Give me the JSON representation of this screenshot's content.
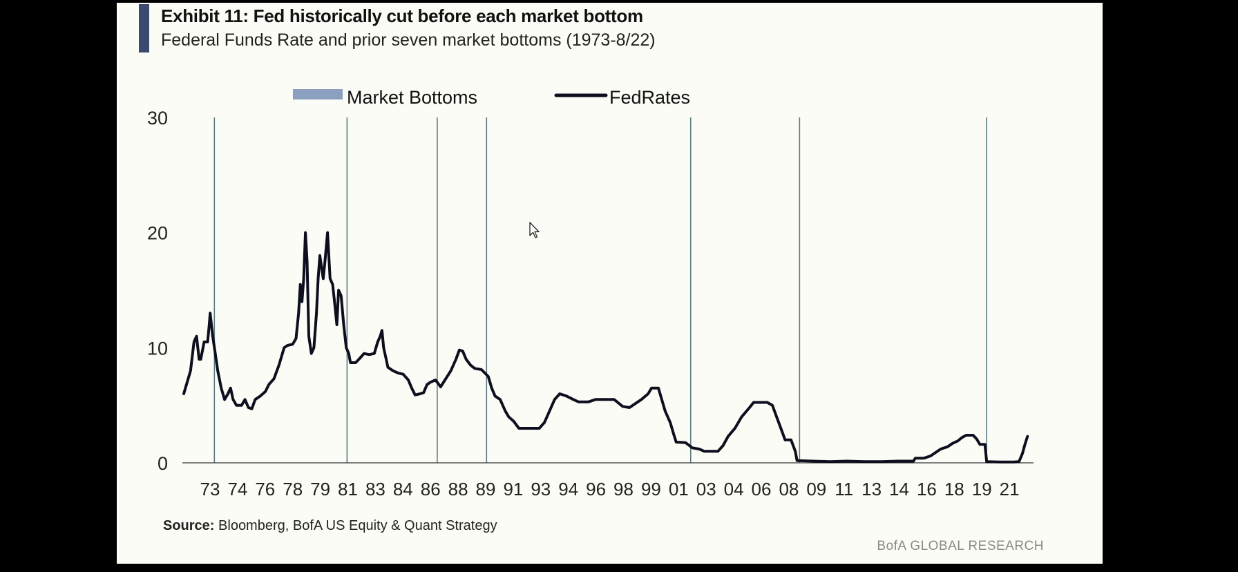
{
  "header": {
    "title": "Exhibit 11: Fed historically cut before each market bottom",
    "subtitle": "Federal Funds Rate and prior seven market bottoms (1973-8/22)"
  },
  "footer": {
    "source_label": "Source:",
    "source_text": "Bloomberg, BofA US Equity & Quant Strategy",
    "brand": "BofA GLOBAL RESEARCH"
  },
  "colors": {
    "line": "#0d0f1e",
    "bottoms": "#5b7b82",
    "legend_bottoms": "#8aa0be",
    "title_bar": "#3c4a70"
  },
  "chart_data": {
    "type": "line",
    "title": "Exhibit 11: Fed historically cut before each market bottom",
    "subtitle": "Federal Funds Rate and prior seven market bottoms (1973-8/22)",
    "xlabel": "",
    "ylabel": "",
    "ylim": [
      0,
      30
    ],
    "yticks": [
      "0",
      "10",
      "20",
      "30"
    ],
    "xticks": [
      "73",
      "74",
      "76",
      "78",
      "79",
      "81",
      "83",
      "84",
      "86",
      "88",
      "89",
      "91",
      "93",
      "94",
      "96",
      "98",
      "99",
      "01",
      "03",
      "04",
      "06",
      "08",
      "09",
      "11",
      "13",
      "14",
      "16",
      "18",
      "19",
      "21"
    ],
    "legend": {
      "position": "top",
      "entries": [
        {
          "name": "Market Bottoms",
          "kind": "bar"
        },
        {
          "name": "FedRates",
          "kind": "line"
        }
      ]
    },
    "market_bottoms": [
      1974.8,
      1982.6,
      1987.9,
      1990.8,
      2002.8,
      2009.2,
      2020.2
    ],
    "series": [
      {
        "name": "FedRates",
        "points": [
          [
            1973.0,
            6.0
          ],
          [
            1973.2,
            7.0
          ],
          [
            1973.4,
            8.0
          ],
          [
            1973.6,
            10.5
          ],
          [
            1973.75,
            11.0
          ],
          [
            1973.9,
            9.0
          ],
          [
            1974.0,
            9.0
          ],
          [
            1974.2,
            10.5
          ],
          [
            1974.4,
            10.5
          ],
          [
            1974.5,
            12.0
          ],
          [
            1974.55,
            13.0
          ],
          [
            1974.7,
            11.0
          ],
          [
            1974.85,
            9.5
          ],
          [
            1975.0,
            8.0
          ],
          [
            1975.2,
            6.5
          ],
          [
            1975.4,
            5.5
          ],
          [
            1975.6,
            6.0
          ],
          [
            1975.75,
            6.5
          ],
          [
            1975.9,
            5.5
          ],
          [
            1976.1,
            5.0
          ],
          [
            1976.4,
            5.0
          ],
          [
            1976.6,
            5.5
          ],
          [
            1976.8,
            4.8
          ],
          [
            1977.0,
            4.7
          ],
          [
            1977.2,
            5.5
          ],
          [
            1977.5,
            5.8
          ],
          [
            1977.8,
            6.2
          ],
          [
            1978.0,
            6.8
          ],
          [
            1978.3,
            7.3
          ],
          [
            1978.6,
            8.5
          ],
          [
            1978.9,
            10.0
          ],
          [
            1979.1,
            10.2
          ],
          [
            1979.4,
            10.3
          ],
          [
            1979.6,
            10.8
          ],
          [
            1979.75,
            13.0
          ],
          [
            1979.85,
            15.5
          ],
          [
            1979.95,
            14.0
          ],
          [
            1980.05,
            16.0
          ],
          [
            1980.15,
            20.0
          ],
          [
            1980.25,
            17.5
          ],
          [
            1980.35,
            11.0
          ],
          [
            1980.5,
            9.5
          ],
          [
            1980.65,
            10.0
          ],
          [
            1980.8,
            13.0
          ],
          [
            1980.9,
            16.0
          ],
          [
            1981.0,
            18.0
          ],
          [
            1981.1,
            17.0
          ],
          [
            1981.2,
            16.0
          ],
          [
            1981.3,
            17.5
          ],
          [
            1981.45,
            20.0
          ],
          [
            1981.6,
            16.0
          ],
          [
            1981.75,
            15.5
          ],
          [
            1981.9,
            13.5
          ],
          [
            1982.0,
            12.0
          ],
          [
            1982.1,
            15.0
          ],
          [
            1982.25,
            14.5
          ],
          [
            1982.4,
            12.0
          ],
          [
            1982.55,
            10.0
          ],
          [
            1982.7,
            9.5
          ],
          [
            1982.8,
            8.7
          ],
          [
            1983.1,
            8.7
          ],
          [
            1983.3,
            9.0
          ],
          [
            1983.6,
            9.5
          ],
          [
            1983.9,
            9.4
          ],
          [
            1984.2,
            9.5
          ],
          [
            1984.4,
            10.5
          ],
          [
            1984.55,
            11.0
          ],
          [
            1984.65,
            11.5
          ],
          [
            1984.75,
            10.0
          ],
          [
            1984.9,
            9.0
          ],
          [
            1985.0,
            8.3
          ],
          [
            1985.3,
            8.0
          ],
          [
            1985.6,
            7.8
          ],
          [
            1985.9,
            7.7
          ],
          [
            1986.2,
            7.2
          ],
          [
            1986.4,
            6.5
          ],
          [
            1986.6,
            5.9
          ],
          [
            1986.9,
            6.0
          ],
          [
            1987.1,
            6.1
          ],
          [
            1987.3,
            6.8
          ],
          [
            1987.5,
            7.0
          ],
          [
            1987.8,
            7.2
          ],
          [
            1988.1,
            6.6
          ],
          [
            1988.4,
            7.3
          ],
          [
            1988.7,
            8.0
          ],
          [
            1989.0,
            9.0
          ],
          [
            1989.2,
            9.8
          ],
          [
            1989.4,
            9.7
          ],
          [
            1989.6,
            9.0
          ],
          [
            1989.85,
            8.5
          ],
          [
            1990.1,
            8.2
          ],
          [
            1990.5,
            8.1
          ],
          [
            1990.9,
            7.5
          ],
          [
            1991.1,
            6.5
          ],
          [
            1991.3,
            5.8
          ],
          [
            1991.6,
            5.5
          ],
          [
            1991.9,
            4.5
          ],
          [
            1992.1,
            4.0
          ],
          [
            1992.4,
            3.6
          ],
          [
            1992.7,
            3.0
          ],
          [
            1993.0,
            3.0
          ],
          [
            1993.5,
            3.0
          ],
          [
            1993.9,
            3.0
          ],
          [
            1994.2,
            3.5
          ],
          [
            1994.5,
            4.5
          ],
          [
            1994.8,
            5.5
          ],
          [
            1995.1,
            6.0
          ],
          [
            1995.5,
            5.8
          ],
          [
            1995.9,
            5.5
          ],
          [
            1996.2,
            5.3
          ],
          [
            1996.8,
            5.3
          ],
          [
            1997.2,
            5.5
          ],
          [
            1997.7,
            5.5
          ],
          [
            1998.3,
            5.5
          ],
          [
            1998.8,
            4.9
          ],
          [
            1999.2,
            4.8
          ],
          [
            1999.6,
            5.2
          ],
          [
            1999.9,
            5.5
          ],
          [
            2000.3,
            6.0
          ],
          [
            2000.5,
            6.5
          ],
          [
            2000.9,
            6.5
          ],
          [
            2001.1,
            5.5
          ],
          [
            2001.3,
            4.5
          ],
          [
            2001.6,
            3.5
          ],
          [
            2001.8,
            2.5
          ],
          [
            2001.95,
            1.8
          ],
          [
            2002.5,
            1.75
          ],
          [
            2002.9,
            1.3
          ],
          [
            2003.3,
            1.2
          ],
          [
            2003.6,
            1.0
          ],
          [
            2004.0,
            1.0
          ],
          [
            2004.4,
            1.0
          ],
          [
            2004.7,
            1.5
          ],
          [
            2005.0,
            2.3
          ],
          [
            2005.4,
            3.0
          ],
          [
            2005.8,
            4.0
          ],
          [
            2006.2,
            4.7
          ],
          [
            2006.5,
            5.25
          ],
          [
            2007.3,
            5.25
          ],
          [
            2007.6,
            5.0
          ],
          [
            2007.85,
            4.0
          ],
          [
            2008.1,
            3.0
          ],
          [
            2008.35,
            2.0
          ],
          [
            2008.7,
            2.0
          ],
          [
            2008.95,
            1.0
          ],
          [
            2009.05,
            0.2
          ],
          [
            2010.0,
            0.15
          ],
          [
            2011.0,
            0.1
          ],
          [
            2012.0,
            0.15
          ],
          [
            2013.0,
            0.1
          ],
          [
            2014.0,
            0.1
          ],
          [
            2015.0,
            0.15
          ],
          [
            2015.9,
            0.15
          ],
          [
            2016.0,
            0.4
          ],
          [
            2016.5,
            0.4
          ],
          [
            2016.9,
            0.6
          ],
          [
            2017.2,
            0.9
          ],
          [
            2017.5,
            1.2
          ],
          [
            2017.9,
            1.4
          ],
          [
            2018.2,
            1.7
          ],
          [
            2018.5,
            1.9
          ],
          [
            2018.75,
            2.2
          ],
          [
            2019.0,
            2.4
          ],
          [
            2019.4,
            2.4
          ],
          [
            2019.6,
            2.1
          ],
          [
            2019.8,
            1.6
          ],
          [
            2020.1,
            1.6
          ],
          [
            2020.2,
            0.1
          ],
          [
            2021.0,
            0.08
          ],
          [
            2021.8,
            0.08
          ],
          [
            2022.1,
            0.1
          ],
          [
            2022.3,
            0.8
          ],
          [
            2022.45,
            1.6
          ],
          [
            2022.6,
            2.3
          ]
        ]
      }
    ]
  }
}
